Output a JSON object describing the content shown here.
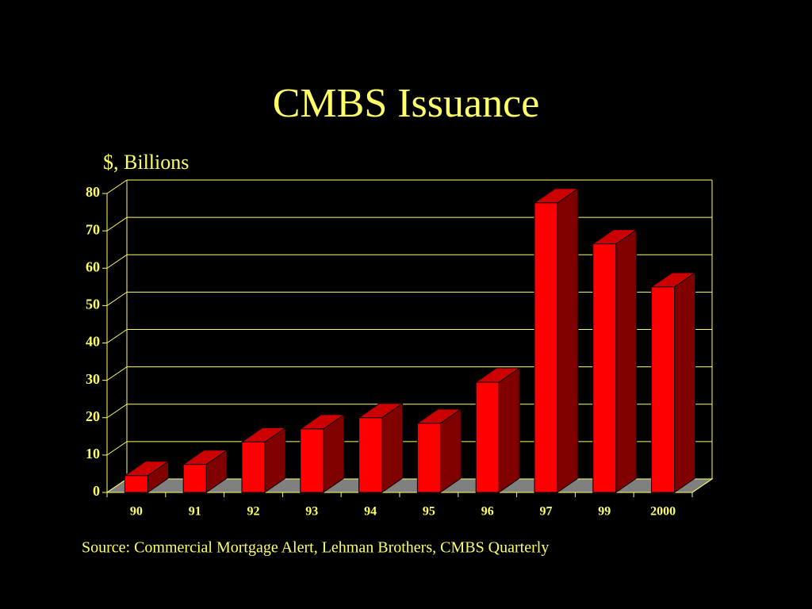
{
  "chart_data": {
    "type": "bar3d",
    "title": "CMBS Issuance",
    "y_label": "$, Billions",
    "source": "Source: Commercial Mortgage Alert, Lehman Brothers, CMBS Quarterly",
    "categories": [
      "90",
      "91",
      "92",
      "93",
      "94",
      "95",
      "96",
      "97",
      "99",
      "2000"
    ],
    "values": [
      4.5,
      7.5,
      13.5,
      17,
      20,
      18.5,
      29.5,
      77.5,
      66.5,
      55
    ],
    "color": "#ff0000",
    "ylim": [
      0,
      80
    ],
    "yticks": [
      0,
      10,
      20,
      30,
      40,
      50,
      60,
      70,
      80
    ],
    "grid": true
  }
}
